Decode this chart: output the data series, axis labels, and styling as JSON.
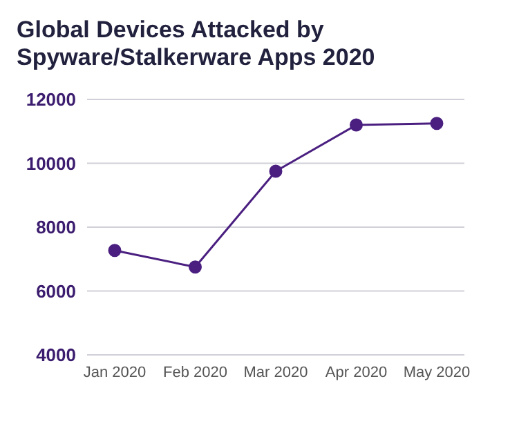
{
  "chart_data": {
    "type": "line",
    "title": "Global Devices Attacked by Spyware/Stalkerware Apps 2020",
    "categories": [
      "Jan 2020",
      "Feb 2020",
      "Mar 2020",
      "Apr 2020",
      "May 2020"
    ],
    "series": [
      {
        "color": "#4a1f80",
        "values": [
          7270,
          6750,
          9750,
          11200,
          11250
        ]
      }
    ],
    "ylim": [
      4000,
      12000
    ],
    "yticks": [
      4000,
      6000,
      8000,
      10000,
      12000
    ],
    "grid": "y",
    "marker": "circle",
    "line_style": "solid"
  }
}
